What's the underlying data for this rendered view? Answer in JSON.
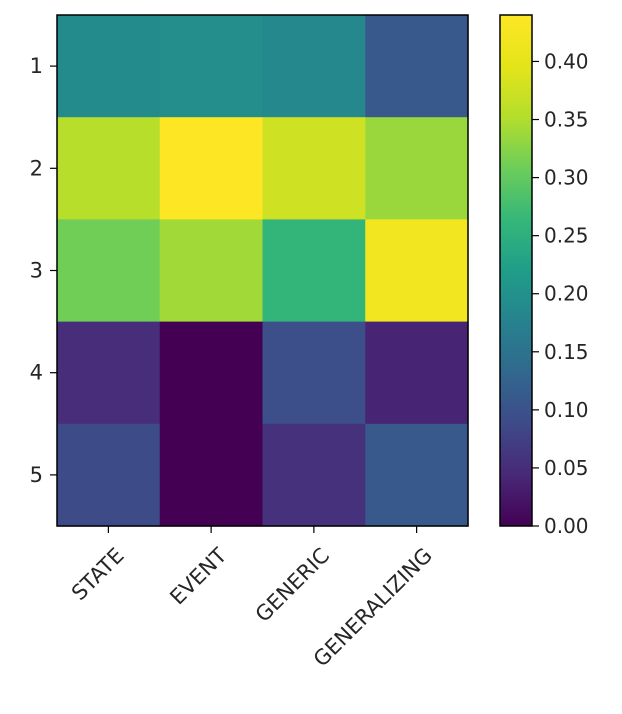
{
  "chart_data": {
    "type": "heatmap",
    "title": "",
    "xlabel": "",
    "ylabel": "",
    "x_categories": [
      "STATE",
      "EVENT",
      "GENERIC",
      "GENERALIZING"
    ],
    "y_categories": [
      "1",
      "2",
      "3",
      "4",
      "5"
    ],
    "values": [
      [
        0.19,
        0.195,
        0.185,
        0.11
      ],
      [
        0.355,
        0.44,
        0.375,
        0.335
      ],
      [
        0.31,
        0.34,
        0.26,
        0.42
      ],
      [
        0.05,
        0.0,
        0.095,
        0.04
      ],
      [
        0.09,
        0.0,
        0.055,
        0.11
      ]
    ],
    "colormap": "viridis",
    "vmin": 0.0,
    "vmax": 0.44,
    "colorbar": {
      "ticks": [
        0.0,
        0.05,
        0.1,
        0.15,
        0.2,
        0.25,
        0.3,
        0.35,
        0.4
      ],
      "tick_labels": [
        "0.00",
        "0.05",
        "0.10",
        "0.15",
        "0.20",
        "0.25",
        "0.30",
        "0.35",
        "0.40"
      ],
      "placement": "right"
    },
    "grid": false
  }
}
